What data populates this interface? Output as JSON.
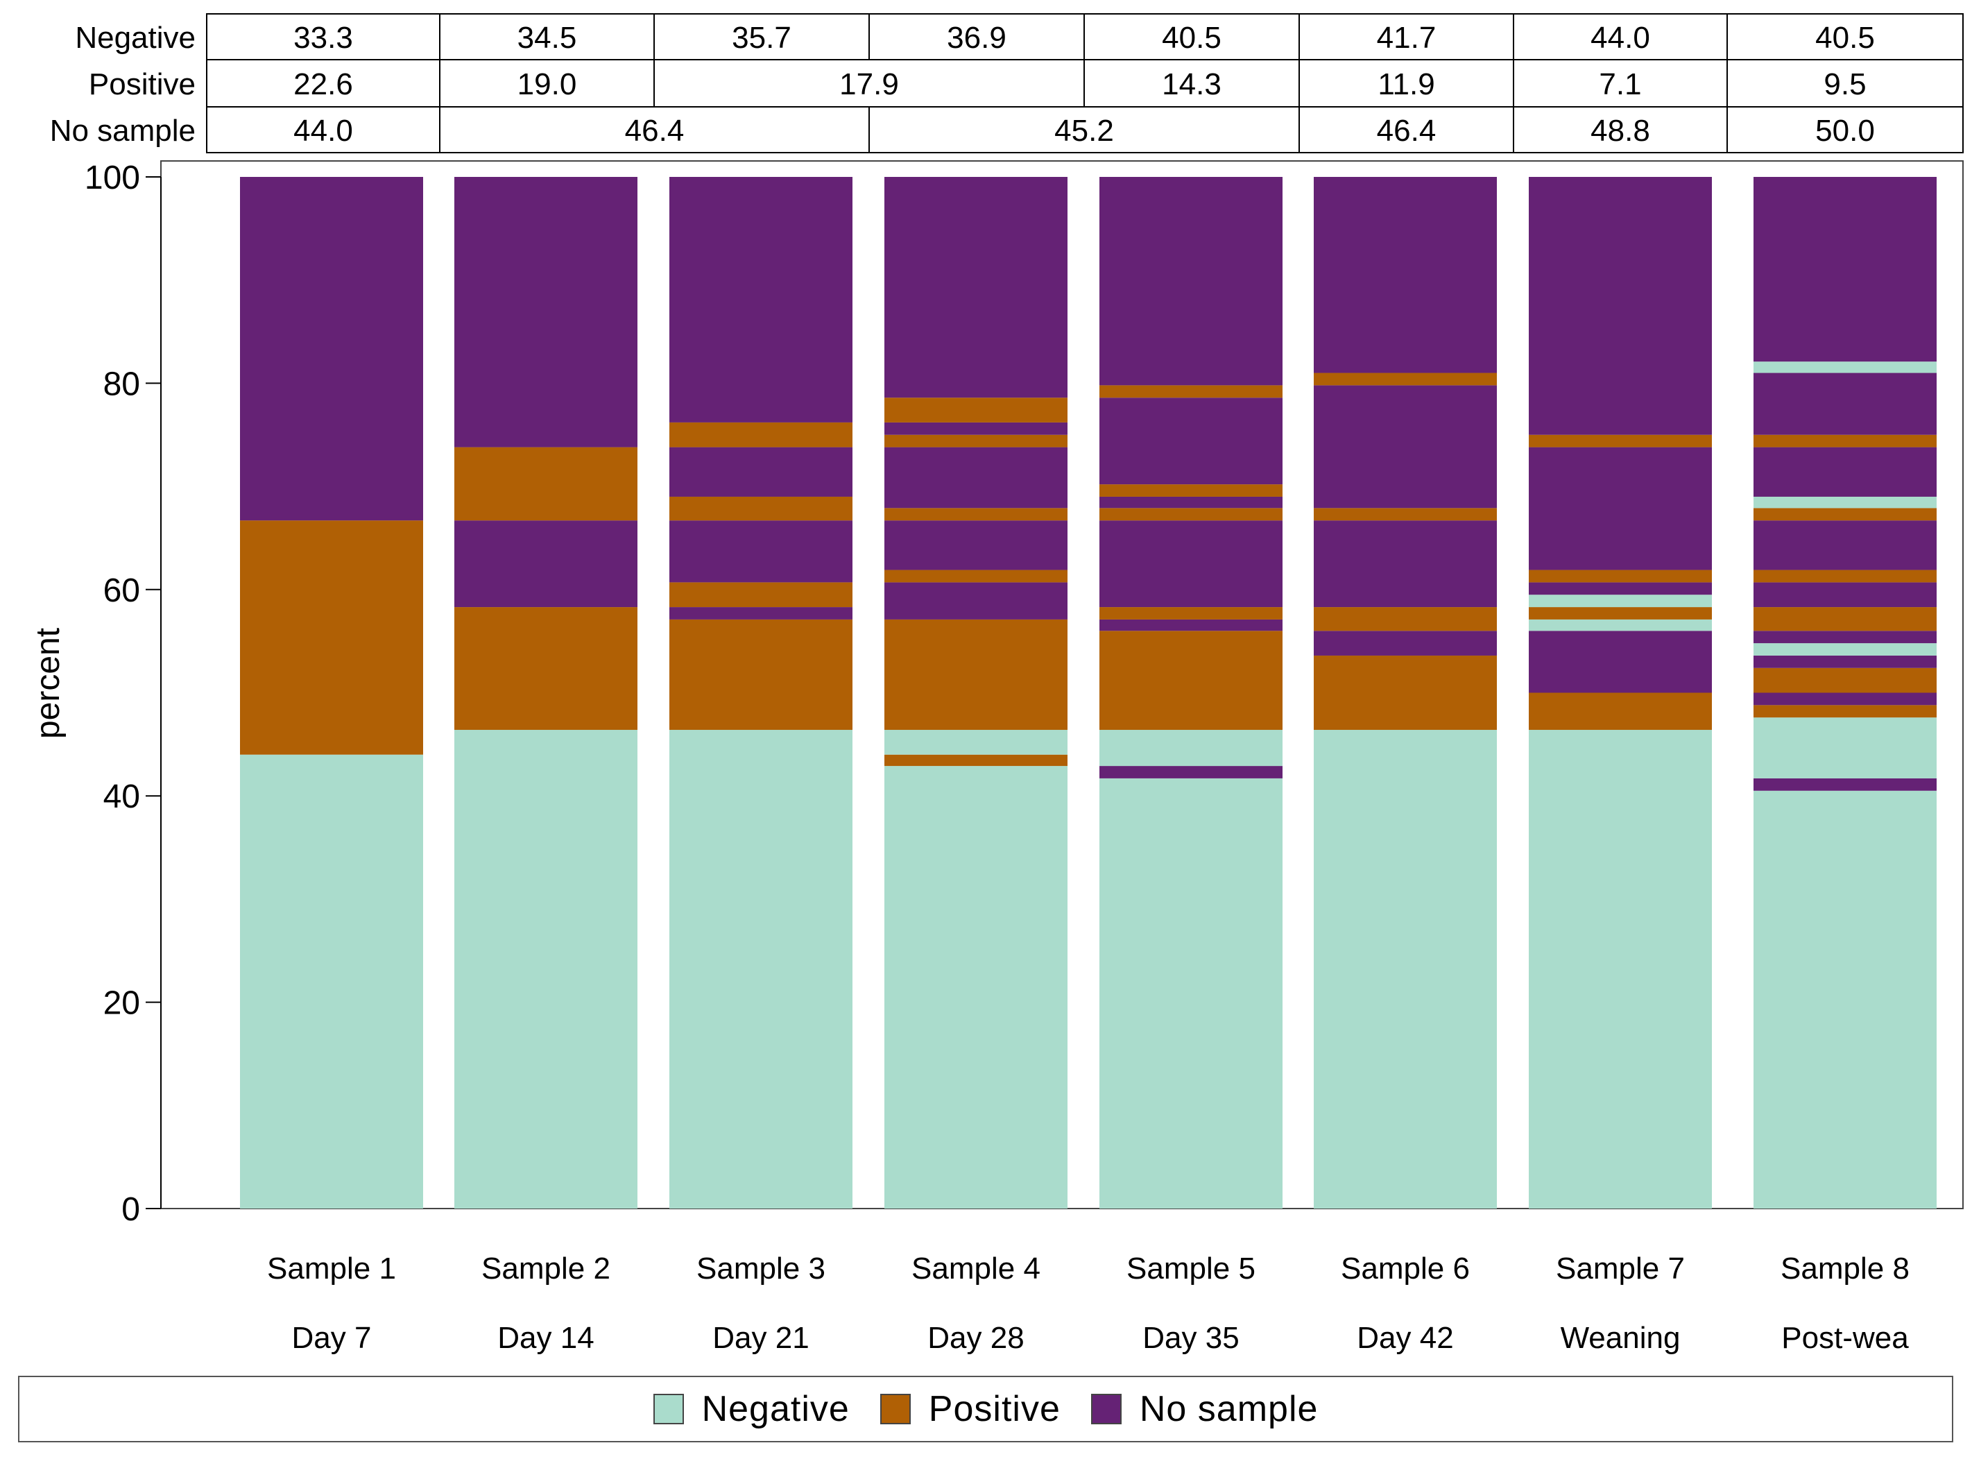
{
  "chart_data": {
    "type": "bar",
    "stacked": true,
    "title": "",
    "xlabel": "",
    "ylabel": "percent",
    "ylim": [
      0,
      100
    ],
    "yticks": [
      0,
      20,
      40,
      60,
      80,
      100
    ],
    "categories": [
      {
        "line1": "Sample 1",
        "line2": "Day 7"
      },
      {
        "line1": "Sample 2",
        "line2": "Day 14"
      },
      {
        "line1": "Sample 3",
        "line2": "Day 21"
      },
      {
        "line1": "Sample 4",
        "line2": "Day 28"
      },
      {
        "line1": "Sample 5",
        "line2": "Day 35"
      },
      {
        "line1": "Sample 6",
        "line2": "Day 42"
      },
      {
        "line1": "Sample 7",
        "line2": "Weaning"
      },
      {
        "line1": "Sample 8",
        "line2": "Post-wea"
      }
    ],
    "colors": {
      "Negative": "#aadccc",
      "Positive": "#b06005",
      "No sample": "#652275"
    },
    "legend": [
      "Negative",
      "Positive",
      "No sample"
    ],
    "legend_position": "bottom",
    "bars": [
      [
        [
          "Negative",
          0,
          44.0
        ],
        [
          "Positive",
          44.0,
          66.7
        ],
        [
          "No sample",
          66.7,
          100
        ]
      ],
      [
        [
          "Negative",
          0,
          46.4
        ],
        [
          "Positive",
          46.4,
          58.3
        ],
        [
          "No sample",
          58.3,
          66.7
        ],
        [
          "Positive",
          66.7,
          73.8
        ],
        [
          "No sample",
          73.8,
          100
        ]
      ],
      [
        [
          "Negative",
          0,
          46.4
        ],
        [
          "Positive",
          46.4,
          57.1
        ],
        [
          "No sample",
          57.1,
          58.3
        ],
        [
          "Positive",
          58.3,
          60.7
        ],
        [
          "No sample",
          60.7,
          66.7
        ],
        [
          "Positive",
          66.7,
          69.0
        ],
        [
          "No sample",
          69.0,
          73.8
        ],
        [
          "Positive",
          73.8,
          76.2
        ],
        [
          "No sample",
          76.2,
          100
        ]
      ],
      [
        [
          "Negative",
          0,
          42.9
        ],
        [
          "Positive",
          42.9,
          44.0
        ],
        [
          "Negative",
          44.0,
          46.4
        ],
        [
          "Positive",
          46.4,
          57.1
        ],
        [
          "No sample",
          57.1,
          60.7
        ],
        [
          "Positive",
          60.7,
          61.9
        ],
        [
          "No sample",
          61.9,
          66.7
        ],
        [
          "Positive",
          66.7,
          67.9
        ],
        [
          "No sample",
          67.9,
          73.8
        ],
        [
          "Positive",
          73.8,
          75.0
        ],
        [
          "No sample",
          75.0,
          76.2
        ],
        [
          "Positive",
          76.2,
          78.6
        ],
        [
          "No sample",
          78.6,
          100
        ]
      ],
      [
        [
          "Negative",
          0,
          41.7
        ],
        [
          "No sample",
          41.7,
          42.9
        ],
        [
          "Negative",
          42.9,
          46.4
        ],
        [
          "Positive",
          46.4,
          56.0
        ],
        [
          "No sample",
          56.0,
          57.1
        ],
        [
          "Positive",
          57.1,
          58.3
        ],
        [
          "No sample",
          58.3,
          66.7
        ],
        [
          "Positive",
          66.7,
          67.9
        ],
        [
          "No sample",
          67.9,
          69.0
        ],
        [
          "Positive",
          69.0,
          70.2
        ],
        [
          "No sample",
          70.2,
          78.6
        ],
        [
          "Positive",
          78.6,
          79.8
        ],
        [
          "No sample",
          79.8,
          100
        ]
      ],
      [
        [
          "Negative",
          0,
          46.4
        ],
        [
          "Positive",
          46.4,
          53.6
        ],
        [
          "No sample",
          53.6,
          56.0
        ],
        [
          "Positive",
          56.0,
          58.3
        ],
        [
          "No sample",
          58.3,
          66.7
        ],
        [
          "Positive",
          66.7,
          67.9
        ],
        [
          "No sample",
          67.9,
          79.8
        ],
        [
          "Positive",
          79.8,
          81.0
        ],
        [
          "No sample",
          81.0,
          100
        ]
      ],
      [
        [
          "Negative",
          0,
          46.4
        ],
        [
          "Positive",
          46.4,
          50.0
        ],
        [
          "No sample",
          50.0,
          56.0
        ],
        [
          "Negative",
          56.0,
          57.1
        ],
        [
          "Positive",
          57.1,
          58.3
        ],
        [
          "Negative",
          58.3,
          59.5
        ],
        [
          "No sample",
          59.5,
          60.7
        ],
        [
          "Positive",
          60.7,
          61.9
        ],
        [
          "No sample",
          61.9,
          73.8
        ],
        [
          "Positive",
          73.8,
          75.0
        ],
        [
          "No sample",
          75.0,
          100
        ]
      ],
      [
        [
          "Negative",
          0,
          40.5
        ],
        [
          "No sample",
          40.5,
          41.7
        ],
        [
          "Negative",
          41.7,
          47.6
        ],
        [
          "Positive",
          47.6,
          48.8
        ],
        [
          "No sample",
          48.8,
          50.0
        ],
        [
          "Positive",
          50.0,
          52.4
        ],
        [
          "No sample",
          52.4,
          53.6
        ],
        [
          "Negative",
          53.6,
          54.8
        ],
        [
          "No sample",
          54.8,
          56.0
        ],
        [
          "Positive",
          56.0,
          58.3
        ],
        [
          "No sample",
          58.3,
          60.7
        ],
        [
          "Positive",
          60.7,
          61.9
        ],
        [
          "No sample",
          61.9,
          66.7
        ],
        [
          "Positive",
          66.7,
          67.9
        ],
        [
          "Negative",
          67.9,
          69.0
        ],
        [
          "No sample",
          69.0,
          73.8
        ],
        [
          "Positive",
          73.8,
          75.0
        ],
        [
          "No sample",
          75.0,
          81.0
        ],
        [
          "Negative",
          81.0,
          82.1
        ],
        [
          "No sample",
          82.1,
          100
        ]
      ]
    ],
    "summary_table": {
      "rows": [
        {
          "label": "Negative",
          "cells": [
            {
              "text": "33.3",
              "span": 1
            },
            {
              "text": "34.5",
              "span": 1
            },
            {
              "text": "35.7",
              "span": 1
            },
            {
              "text": "36.9",
              "span": 1
            },
            {
              "text": "40.5",
              "span": 1
            },
            {
              "text": "41.7",
              "span": 1
            },
            {
              "text": "44.0",
              "span": 1
            },
            {
              "text": "40.5",
              "span": 1
            }
          ]
        },
        {
          "label": "Positive",
          "cells": [
            {
              "text": "22.6",
              "span": 1
            },
            {
              "text": "19.0",
              "span": 1
            },
            {
              "text": "17.9",
              "span": 2
            },
            {
              "text": "14.3",
              "span": 1
            },
            {
              "text": "11.9",
              "span": 1
            },
            {
              "text": "7.1",
              "span": 1
            },
            {
              "text": "9.5",
              "span": 1
            }
          ]
        },
        {
          "label": "No sample",
          "cells": [
            {
              "text": "44.0",
              "span": 1
            },
            {
              "text": "46.4",
              "span": 2
            },
            {
              "text": "45.2",
              "span": 2
            },
            {
              "text": "46.4",
              "span": 1
            },
            {
              "text": "48.8",
              "span": 1
            },
            {
              "text": "50.0",
              "span": 1
            }
          ]
        }
      ]
    }
  }
}
